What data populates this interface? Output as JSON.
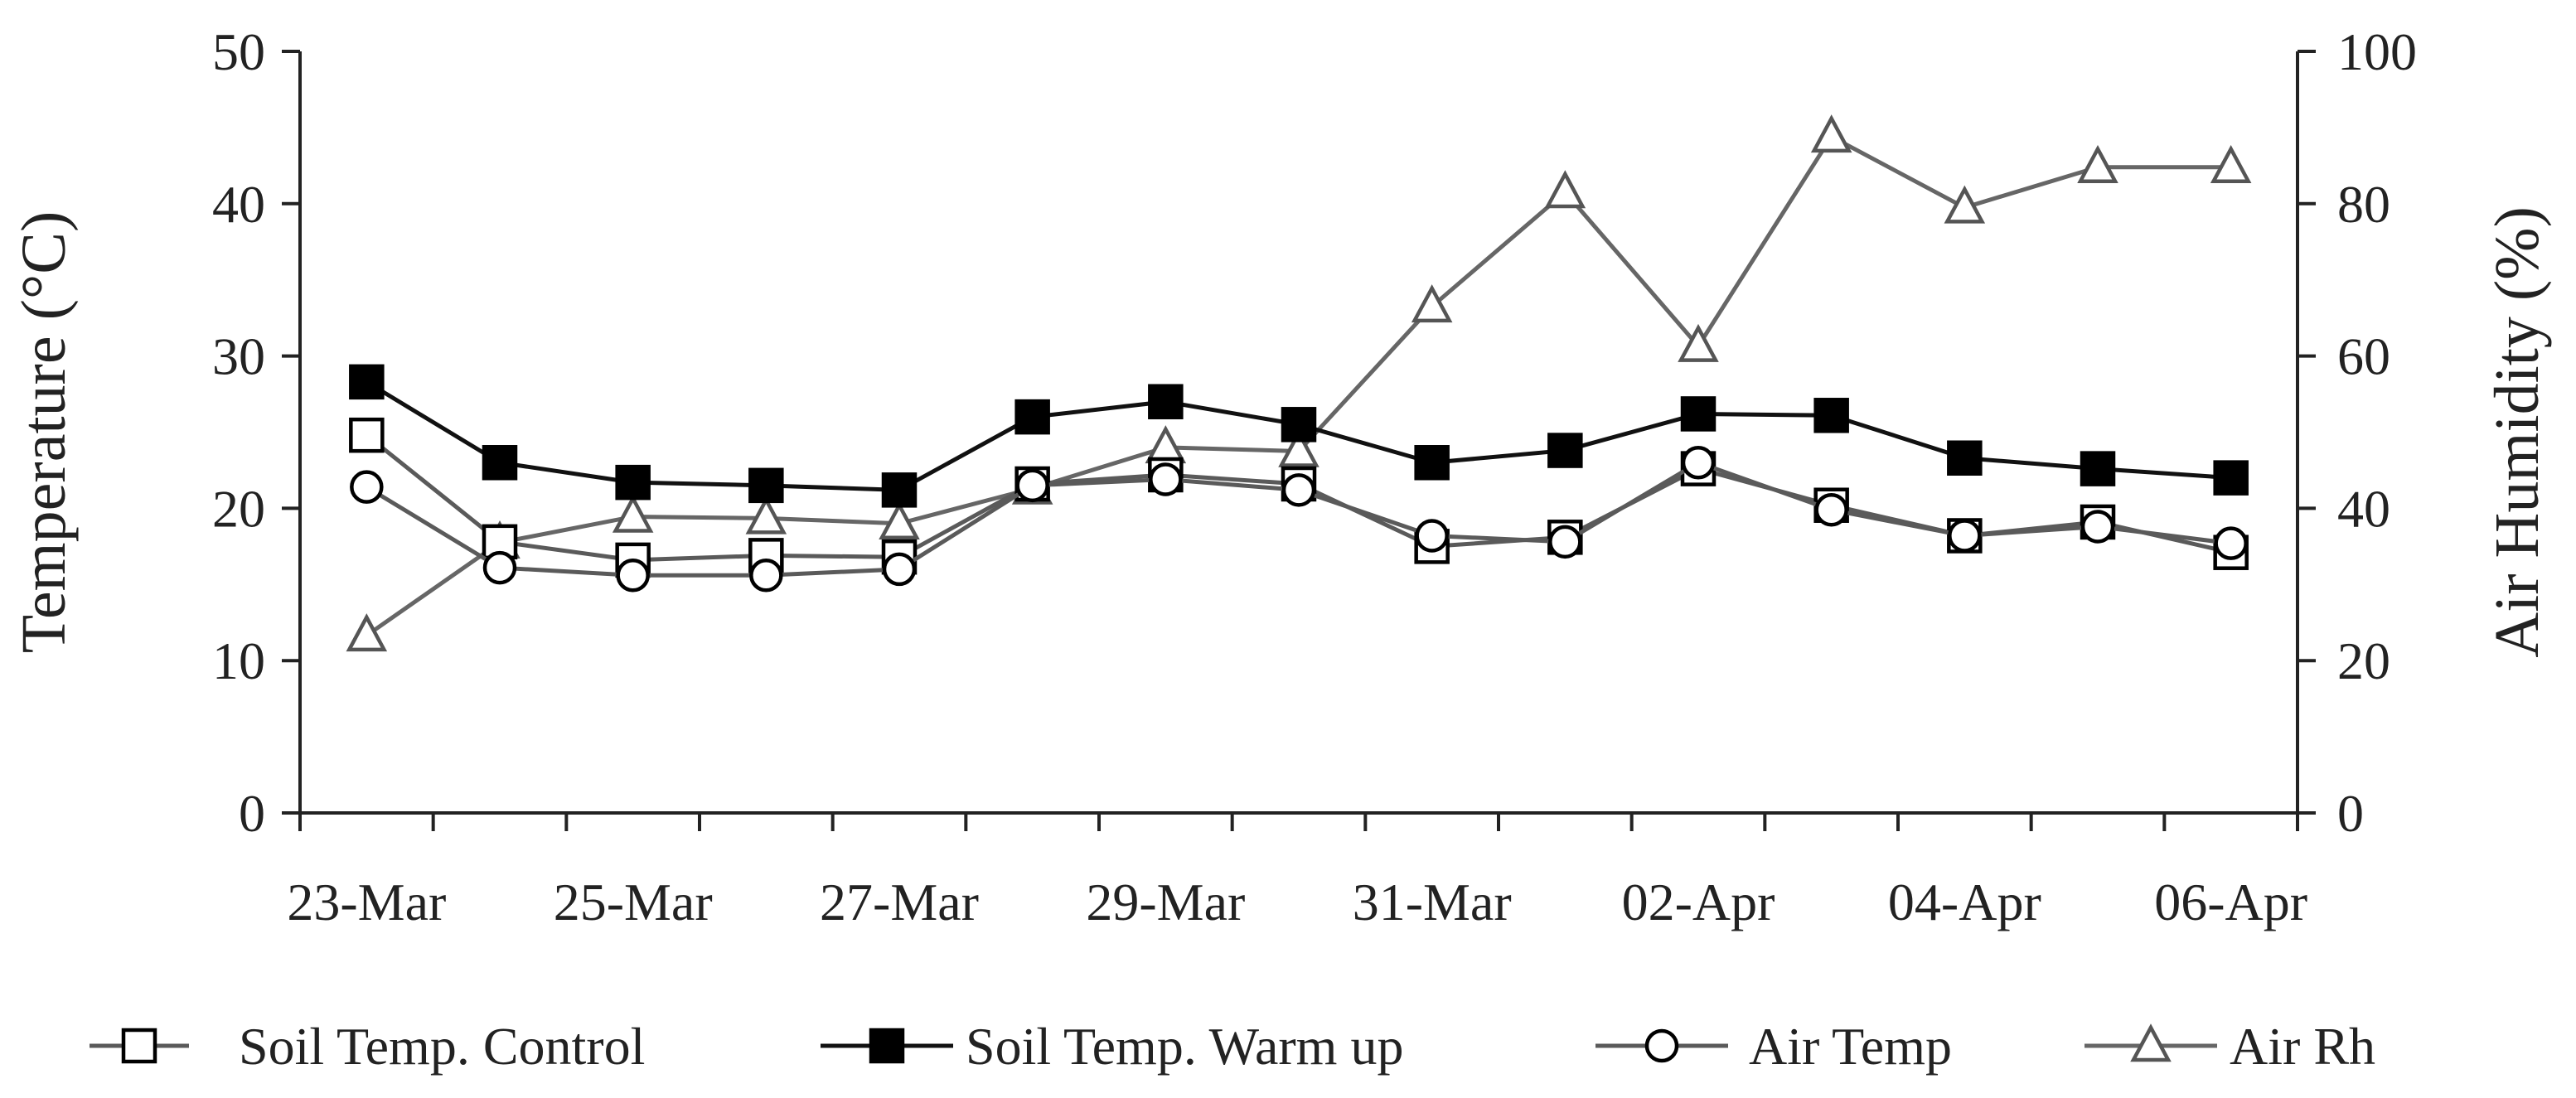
{
  "chart_data": {
    "type": "line",
    "x": [
      "23-Mar",
      "24-Mar",
      "25-Mar",
      "26-Mar",
      "27-Mar",
      "28-Mar",
      "29-Mar",
      "30-Mar",
      "31-Mar",
      "01-Apr",
      "02-Apr",
      "03-Apr",
      "04-Apr",
      "05-Apr",
      "06-Apr"
    ],
    "x_tick_labels": [
      "23-Mar",
      "25-Mar",
      "27-Mar",
      "29-Mar",
      "31-Mar",
      "02-Apr",
      "04-Apr",
      "06-Apr"
    ],
    "ylabel": "Temperature (°C)",
    "y2label": "Air Humidity (%)",
    "ylim": [
      0,
      50
    ],
    "y2lim": [
      0,
      100
    ],
    "yticks": [
      0,
      10,
      20,
      30,
      40,
      50
    ],
    "y2ticks": [
      0,
      20,
      40,
      60,
      80,
      100
    ],
    "legend_position": "bottom",
    "series": [
      {
        "name": "Soil Temp. Control",
        "axis": "left",
        "marker": "square-open",
        "color": "#5a5a5a",
        "values": [
          24.8,
          17.8,
          16.6,
          16.9,
          16.8,
          21.6,
          22.2,
          21.6,
          17.5,
          18.1,
          22.6,
          20.2,
          18.2,
          19.1,
          17.1
        ]
      },
      {
        "name": "Soil Temp. Warm up",
        "axis": "left",
        "marker": "square-filled",
        "color": "#111111",
        "values": [
          28.3,
          23.0,
          21.7,
          21.5,
          21.2,
          26.0,
          27.0,
          25.5,
          23.0,
          23.8,
          26.2,
          26.1,
          23.3,
          22.6,
          22.0
        ]
      },
      {
        "name": "Air Temp",
        "axis": "left",
        "marker": "circle-open",
        "color": "#5a5a5a",
        "values": [
          21.4,
          16.1,
          15.6,
          15.6,
          16.0,
          21.5,
          21.9,
          21.2,
          18.2,
          17.8,
          23.0,
          19.9,
          18.2,
          18.8,
          17.7
        ]
      },
      {
        "name": "Air Rh",
        "axis": "right",
        "marker": "triangle-open",
        "color": "#666666",
        "values": [
          23.3,
          35.5,
          38.9,
          38.7,
          38.0,
          42.6,
          48.0,
          47.5,
          66.5,
          81.5,
          61.3,
          88.8,
          79.5,
          84.8,
          84.8
        ]
      }
    ]
  }
}
